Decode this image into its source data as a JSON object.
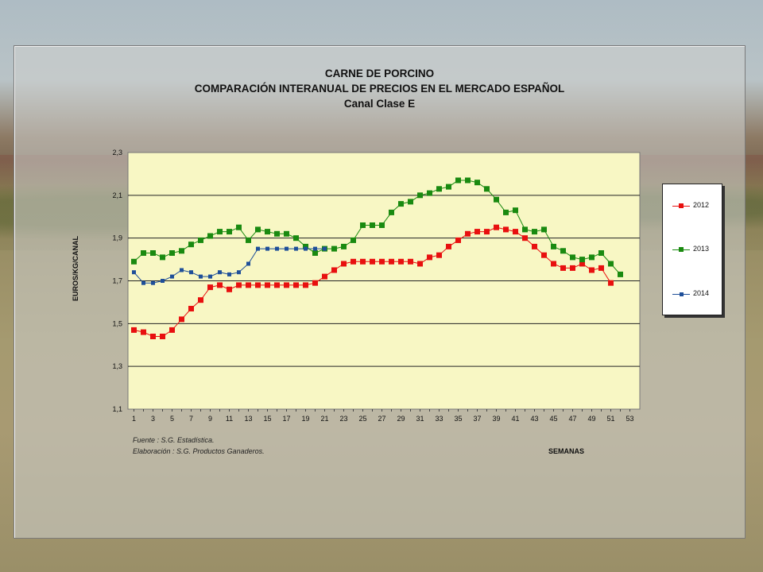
{
  "title": {
    "line1": "CARNE DE PORCINO",
    "line2": "COMPARACIÓN INTERANUAL DE PRECIOS EN EL MERCADO ESPAÑOL",
    "line3": "Canal Clase E"
  },
  "source": {
    "line1": "Fuente : S.G. Estadística.",
    "line2": "Elaboración : S.G. Productos Ganaderos."
  },
  "colors": {
    "plot_bg": "#f8f7c4",
    "s2012": "#e8100f",
    "s2013": "#1a8a10",
    "s2014": "#1f4f99"
  },
  "chart_data": {
    "type": "line",
    "xlabel": "SEMANAS",
    "ylabel": "EUROS/KG/CANAL",
    "xlim": [
      1,
      53
    ],
    "ylim": [
      1.1,
      2.3
    ],
    "xticks": [
      "1",
      "3",
      "5",
      "7",
      "9",
      "11",
      "13",
      "15",
      "17",
      "19",
      "21",
      "23",
      "25",
      "27",
      "29",
      "31",
      "33",
      "35",
      "37",
      "39",
      "41",
      "43",
      "45",
      "47",
      "49",
      "51",
      "53"
    ],
    "yticks": [
      "1,1",
      "1,3",
      "1,5",
      "1,7",
      "1,9",
      "2,1",
      "2,3"
    ],
    "grid": "horizontal",
    "legend": "right",
    "series": [
      {
        "name": "2012",
        "x": [
          1,
          2,
          3,
          4,
          5,
          6,
          7,
          8,
          9,
          10,
          11,
          12,
          13,
          14,
          15,
          16,
          17,
          18,
          19,
          20,
          21,
          22,
          23,
          24,
          25,
          26,
          27,
          28,
          29,
          30,
          31,
          32,
          33,
          34,
          35,
          36,
          37,
          38,
          39,
          40,
          41,
          42,
          43,
          44,
          45,
          46,
          47,
          48,
          49,
          50,
          51
        ],
        "values": [
          1.47,
          1.46,
          1.44,
          1.44,
          1.47,
          1.52,
          1.57,
          1.61,
          1.67,
          1.68,
          1.66,
          1.68,
          1.68,
          1.68,
          1.68,
          1.68,
          1.68,
          1.68,
          1.68,
          1.69,
          1.72,
          1.75,
          1.78,
          1.79,
          1.79,
          1.79,
          1.79,
          1.79,
          1.79,
          1.79,
          1.78,
          1.81,
          1.82,
          1.86,
          1.89,
          1.92,
          1.93,
          1.93,
          1.95,
          1.94,
          1.93,
          1.9,
          1.86,
          1.82,
          1.78,
          1.76,
          1.76,
          1.78,
          1.75,
          1.76,
          1.69
        ]
      },
      {
        "name": "2013",
        "x": [
          1,
          2,
          3,
          4,
          5,
          6,
          7,
          8,
          9,
          10,
          11,
          12,
          13,
          14,
          15,
          16,
          17,
          18,
          19,
          20,
          21,
          22,
          23,
          24,
          25,
          26,
          27,
          28,
          29,
          30,
          31,
          32,
          33,
          34,
          35,
          36,
          37,
          38,
          39,
          40,
          41,
          42,
          43,
          44,
          45,
          46,
          47,
          48,
          49,
          50,
          51,
          52
        ],
        "values": [
          1.79,
          1.83,
          1.83,
          1.81,
          1.83,
          1.84,
          1.87,
          1.89,
          1.91,
          1.93,
          1.93,
          1.95,
          1.89,
          1.94,
          1.93,
          1.92,
          1.92,
          1.9,
          1.86,
          1.83,
          1.85,
          1.85,
          1.86,
          1.89,
          1.96,
          1.96,
          1.96,
          2.02,
          2.06,
          2.07,
          2.1,
          2.11,
          2.13,
          2.14,
          2.17,
          2.17,
          2.16,
          2.13,
          2.08,
          2.02,
          2.03,
          1.94,
          1.93,
          1.94,
          1.86,
          1.84,
          1.81,
          1.8,
          1.81,
          1.83,
          1.78,
          1.73
        ]
      },
      {
        "name": "2014",
        "x": [
          1,
          2,
          3,
          4,
          5,
          6,
          7,
          8,
          9,
          10,
          11,
          12,
          13,
          14,
          15,
          16,
          17,
          18,
          19,
          20,
          21
        ],
        "values": [
          1.74,
          1.69,
          1.69,
          1.7,
          1.72,
          1.75,
          1.74,
          1.72,
          1.72,
          1.74,
          1.73,
          1.74,
          1.78,
          1.85,
          1.85,
          1.85,
          1.85,
          1.85,
          1.85,
          1.85,
          1.85
        ]
      }
    ]
  }
}
